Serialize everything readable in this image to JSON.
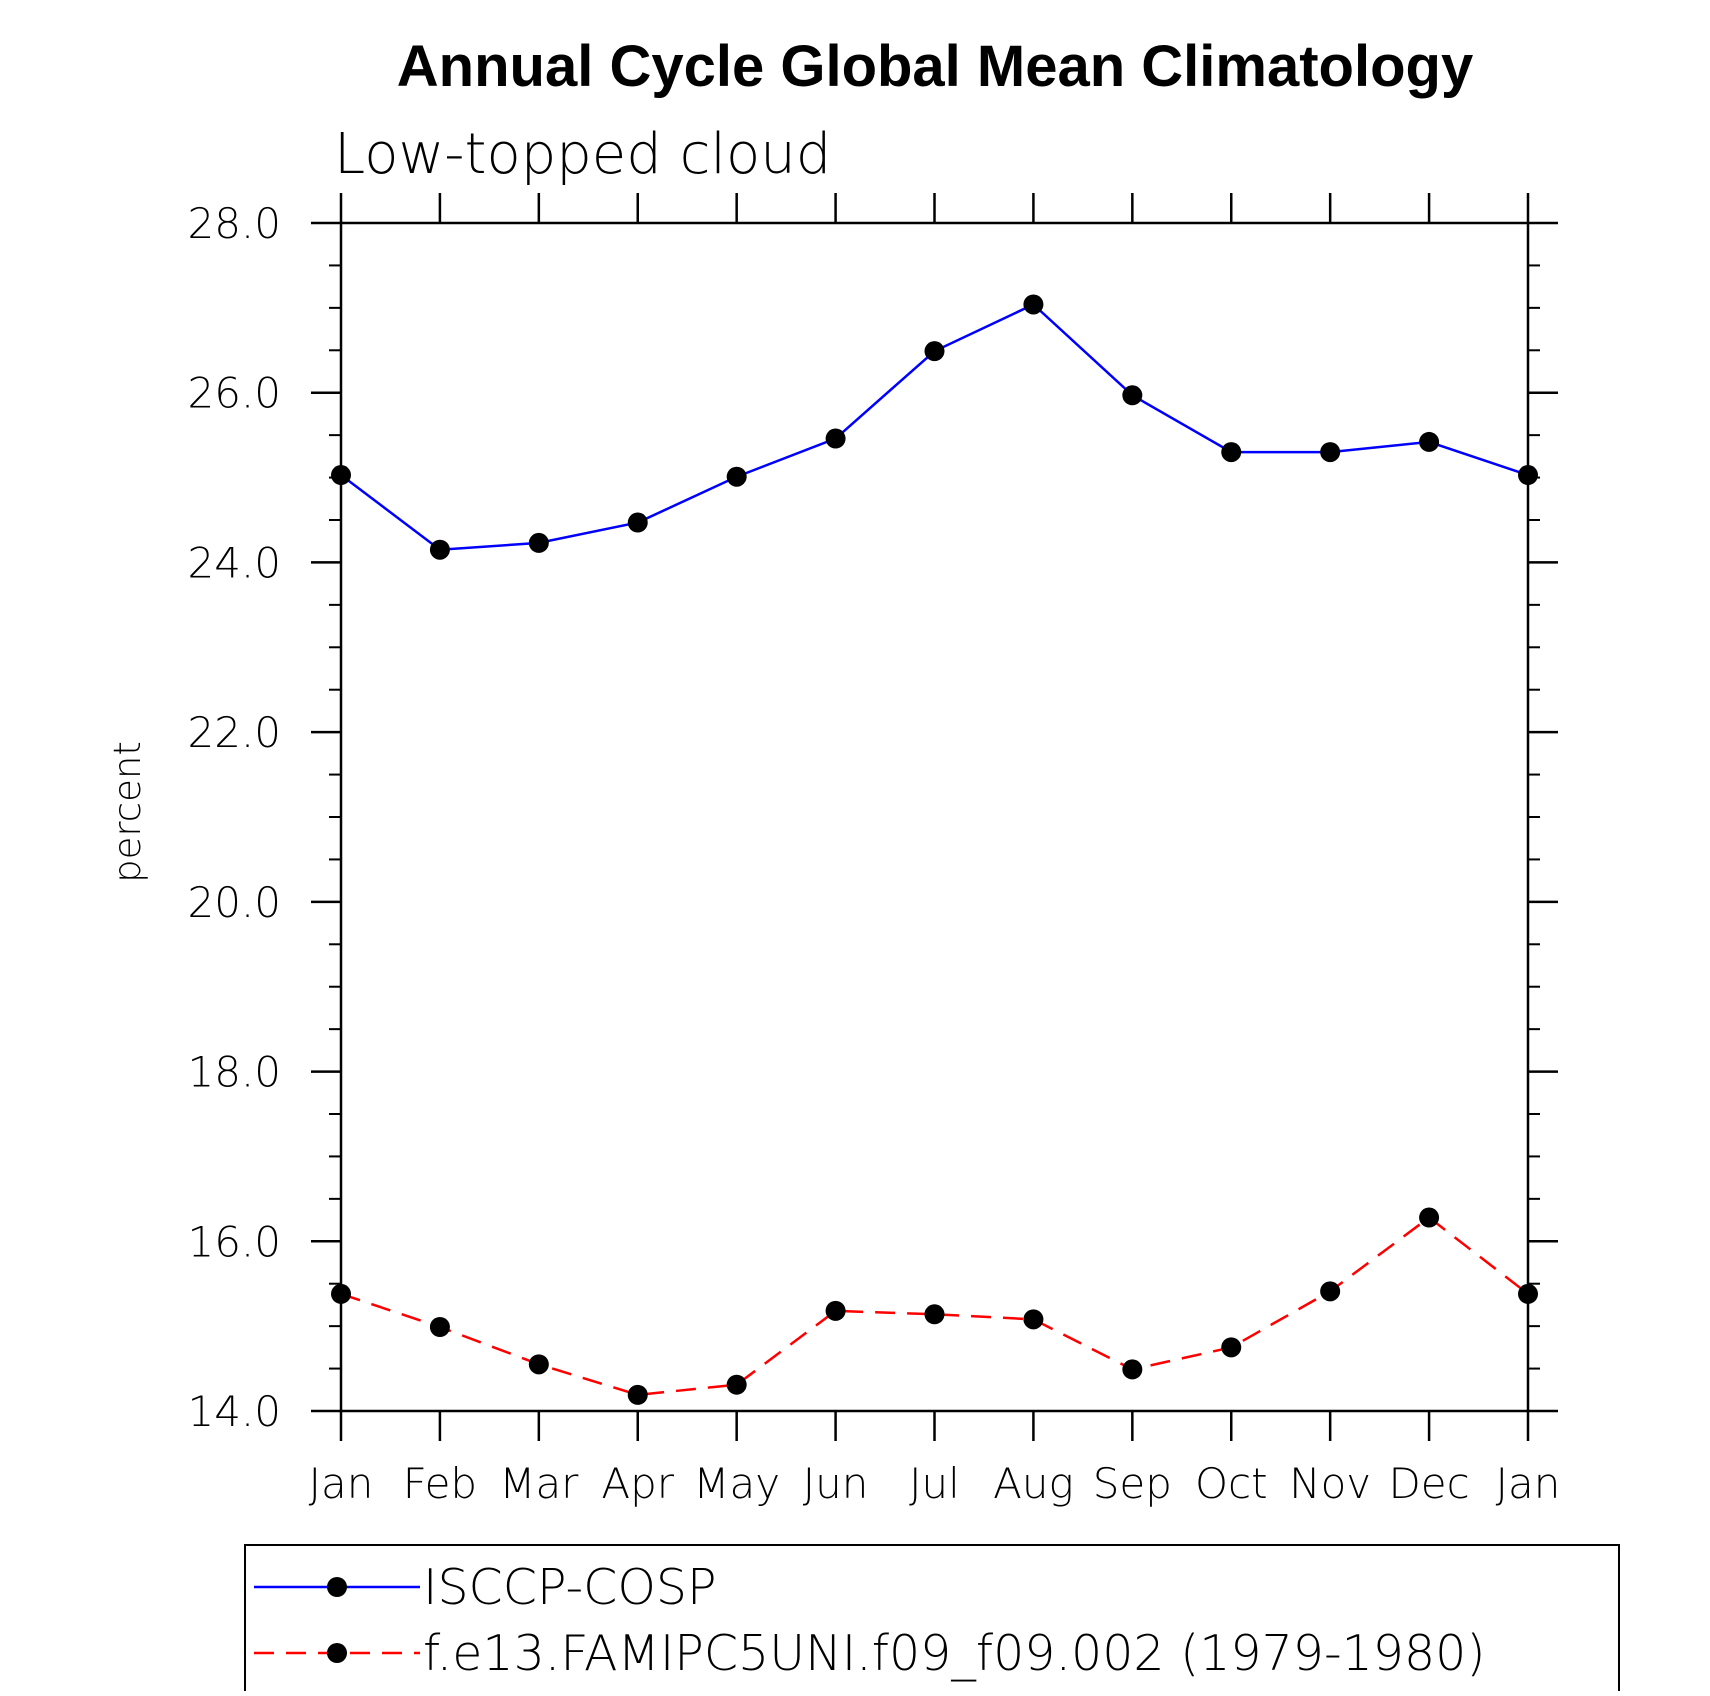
{
  "chart_data": {
    "type": "line",
    "title": "Annual Cycle Global Mean Climatology",
    "subtitle": "Low-topped cloud",
    "xlabel": "",
    "ylabel": "percent",
    "categories": [
      "Jan",
      "Feb",
      "Mar",
      "Apr",
      "May",
      "Jun",
      "Jul",
      "Aug",
      "Sep",
      "Oct",
      "Nov",
      "Dec",
      "Jan"
    ],
    "ylim": [
      14.0,
      28.0
    ],
    "yticks": [
      "14.0",
      "16.0",
      "18.0",
      "20.0",
      "22.0",
      "24.0",
      "26.0",
      "28.0"
    ],
    "grid": false,
    "legend_position": "bottom",
    "series": [
      {
        "name": "ISCCP-COSP",
        "color": "#0000ff",
        "line_style": "solid",
        "marker": "dot",
        "values": [
          25.03,
          24.15,
          24.23,
          24.47,
          25.01,
          25.46,
          26.49,
          27.04,
          25.97,
          25.3,
          25.3,
          25.42,
          25.03
        ]
      },
      {
        "name": "f.e13.FAMIPC5UNI.f09_f09.002 (1979-1980)",
        "color": "#ff0000",
        "line_style": "dashed",
        "marker": "dot",
        "values": [
          15.38,
          14.99,
          14.55,
          14.19,
          14.31,
          15.18,
          15.14,
          15.08,
          14.49,
          14.75,
          15.41,
          16.28,
          15.38
        ]
      }
    ]
  }
}
